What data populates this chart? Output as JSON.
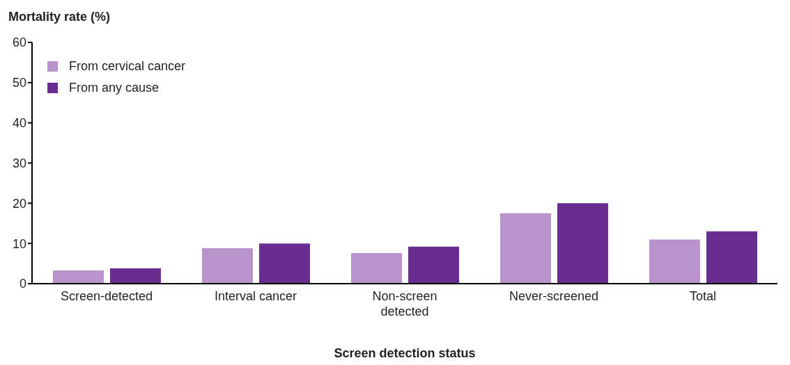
{
  "chart_data": {
    "type": "bar",
    "ylabel": "Mortality rate (%)",
    "xlabel": "Screen detection status",
    "categories": [
      "Screen-detected",
      "Interval cancer",
      "Non-screen detected",
      "Never-screened",
      "Total"
    ],
    "series": [
      {
        "name": "From cervical cancer",
        "color": "#b994cc",
        "values": [
          3.3,
          8.8,
          7.6,
          17.5,
          11.0
        ]
      },
      {
        "name": "From any cause",
        "color": "#692c91",
        "values": [
          3.8,
          10.0,
          9.2,
          20.0,
          13.0
        ]
      }
    ],
    "ylim": [
      0,
      60
    ],
    "yticks": [
      0,
      10,
      20,
      30,
      40,
      50,
      60
    ],
    "grid": false,
    "legend": "top left"
  }
}
